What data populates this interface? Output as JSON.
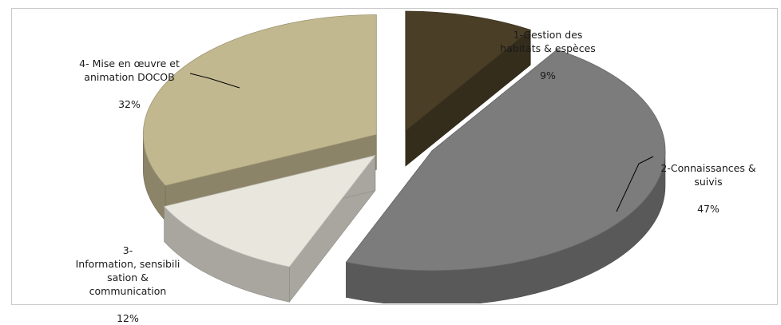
{
  "chart_data": {
    "type": "pie",
    "title": "",
    "slices": [
      {
        "label": "1-Gestion des\nhabitats & espèces",
        "value": 9,
        "value_label": "9%",
        "color": "#4a3e27"
      },
      {
        "label": "2-Connaissances &\nsuivis",
        "value": 47,
        "value_label": "47%",
        "color": "#7c7c7c"
      },
      {
        "label": "3-\nInformation, sensibili\nsation &\ncommunication",
        "value": 12,
        "value_label": "12%",
        "color": "#e9e7dd"
      },
      {
        "label": "4- Mise en œuvre et\nanimation DOCOB",
        "value": 32,
        "value_label": "32%",
        "color": "#c2b890"
      }
    ],
    "exploded": true,
    "three_d": true
  }
}
